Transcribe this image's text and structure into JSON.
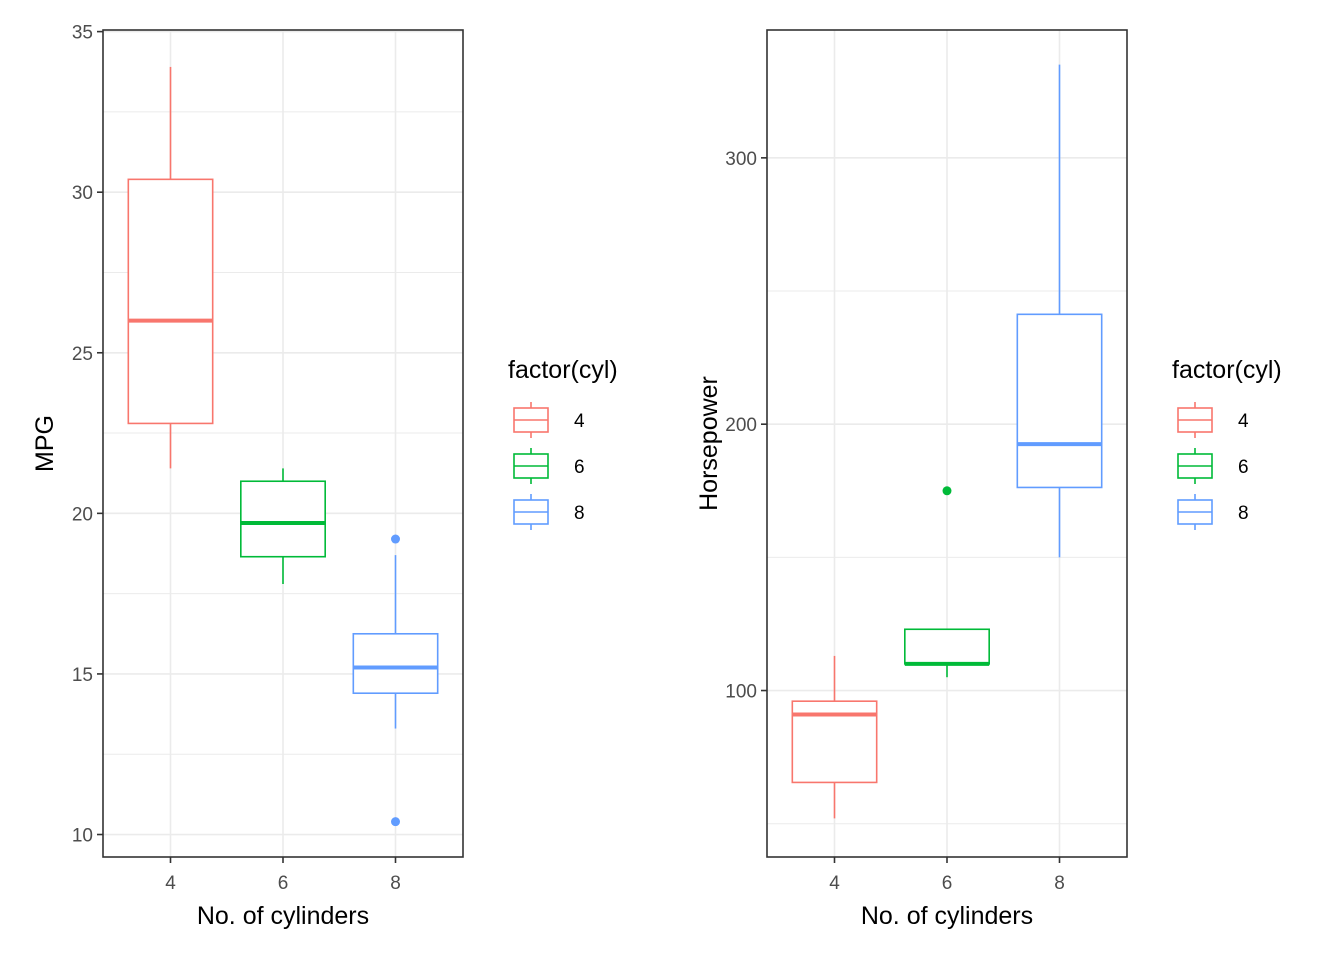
{
  "colors": {
    "4": "#F8766D",
    "6": "#00BA38",
    "8": "#619CFF"
  },
  "chart_data": [
    {
      "type": "boxplot",
      "title": "",
      "xlabel": "No. of cylinders",
      "ylabel": "MPG",
      "categories": [
        "4",
        "6",
        "8"
      ],
      "yticks": [
        10,
        15,
        20,
        25,
        30,
        35
      ],
      "ylim": [
        9.3,
        35.05
      ],
      "legend": {
        "title": "factor(cyl)",
        "position": "right",
        "entries": [
          "4",
          "6",
          "8"
        ]
      },
      "boxes": [
        {
          "category": "4",
          "lower_whisker": 21.4,
          "q1": 22.8,
          "median": 26.0,
          "q3": 30.4,
          "upper_whisker": 33.9,
          "outliers": []
        },
        {
          "category": "6",
          "lower_whisker": 17.8,
          "q1": 18.65,
          "median": 19.7,
          "q3": 21.0,
          "upper_whisker": 21.4,
          "outliers": []
        },
        {
          "category": "8",
          "lower_whisker": 13.3,
          "q1": 14.4,
          "median": 15.2,
          "q3": 16.25,
          "upper_whisker": 18.7,
          "outliers": [
            19.2,
            10.4
          ]
        }
      ]
    },
    {
      "type": "boxplot",
      "title": "",
      "xlabel": "No. of cylinders",
      "ylabel": "Horsepower",
      "categories": [
        "4",
        "6",
        "8"
      ],
      "yticks": [
        100,
        200,
        300
      ],
      "ylim": [
        37.5,
        348
      ],
      "legend": {
        "title": "factor(cyl)",
        "position": "right",
        "entries": [
          "4",
          "6",
          "8"
        ]
      },
      "boxes": [
        {
          "category": "4",
          "lower_whisker": 52,
          "q1": 65.5,
          "median": 91,
          "q3": 96,
          "upper_whisker": 113,
          "outliers": []
        },
        {
          "category": "6",
          "lower_whisker": 105,
          "q1": 110,
          "median": 110,
          "q3": 123,
          "upper_whisker": 123,
          "outliers": [
            175
          ]
        },
        {
          "category": "8",
          "lower_whisker": 150,
          "q1": 176.25,
          "median": 192.5,
          "q3": 241.25,
          "upper_whisker": 335,
          "outliers": []
        }
      ]
    }
  ]
}
